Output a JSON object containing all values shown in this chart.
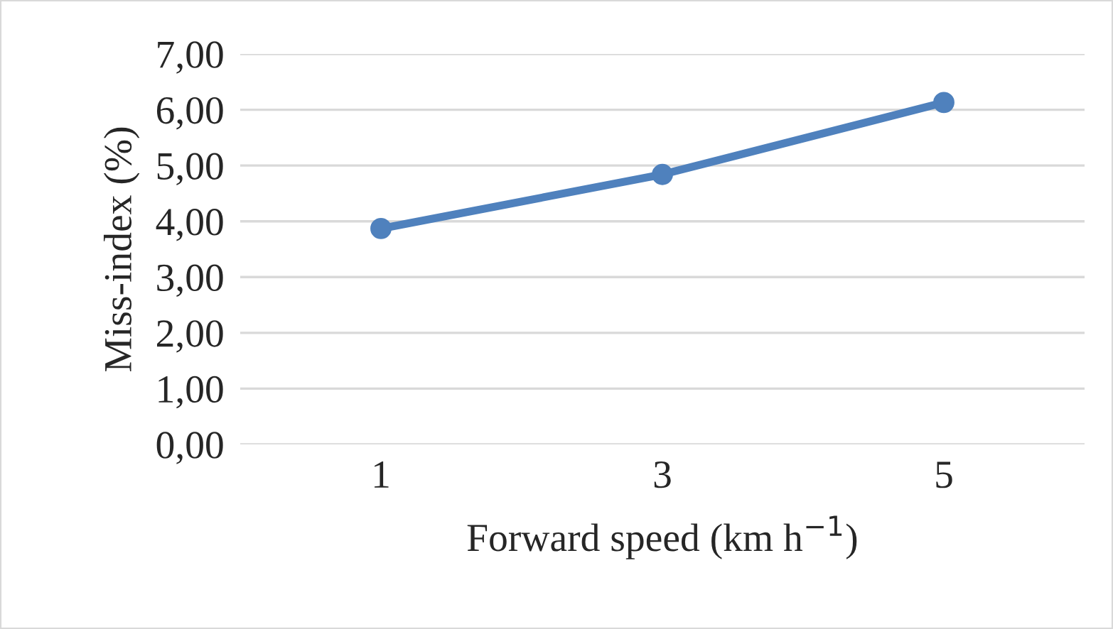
{
  "chart_data": {
    "type": "line",
    "xlabel": "Forward speed (km h$^{−1}$)",
    "ylabel": "Miss-index (%)",
    "categories": [
      "1",
      "3",
      "5"
    ],
    "series": [
      {
        "color": "#4f81bd",
        "values": [
          3.87,
          4.84,
          6.13
        ]
      }
    ],
    "ylim": [
      0,
      7
    ],
    "yticks": [
      {
        "value": 0,
        "label": "0,00"
      },
      {
        "value": 1,
        "label": "1,00"
      },
      {
        "value": 2,
        "label": "2,00"
      },
      {
        "value": 3,
        "label": "3,00"
      },
      {
        "value": 4,
        "label": "4,00"
      },
      {
        "value": 5,
        "label": "5,00"
      },
      {
        "value": 6,
        "label": "6,00"
      },
      {
        "value": 7,
        "label": "7,00"
      }
    ],
    "grid": "y",
    "marker": "circle",
    "line_style": "solid",
    "legend": false
  }
}
